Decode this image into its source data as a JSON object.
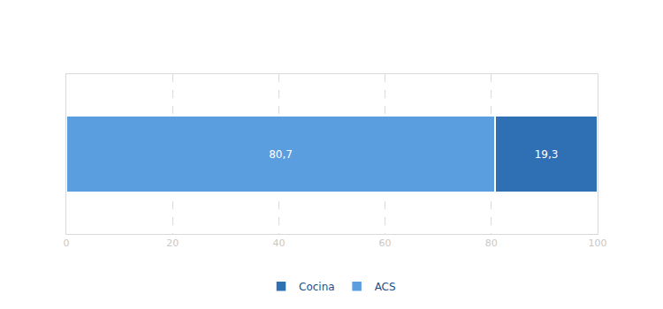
{
  "chart_data": {
    "type": "bar",
    "orientation": "horizontal",
    "stacked": true,
    "categories": [
      null
    ],
    "series": [
      {
        "name": "ACS",
        "color": "#5b9ee0",
        "values": [
          80.7
        ],
        "value_labels": [
          "80,7"
        ]
      },
      {
        "name": "Cocina",
        "color": "#2f6fb4",
        "values": [
          19.3
        ],
        "value_labels": [
          "19,3"
        ]
      }
    ],
    "xlim": [
      0,
      100
    ],
    "xticks": [
      0,
      20,
      40,
      60,
      80,
      100
    ],
    "grid": true,
    "data_labels": true,
    "legend": "bottom",
    "tick_labels": "x"
  }
}
